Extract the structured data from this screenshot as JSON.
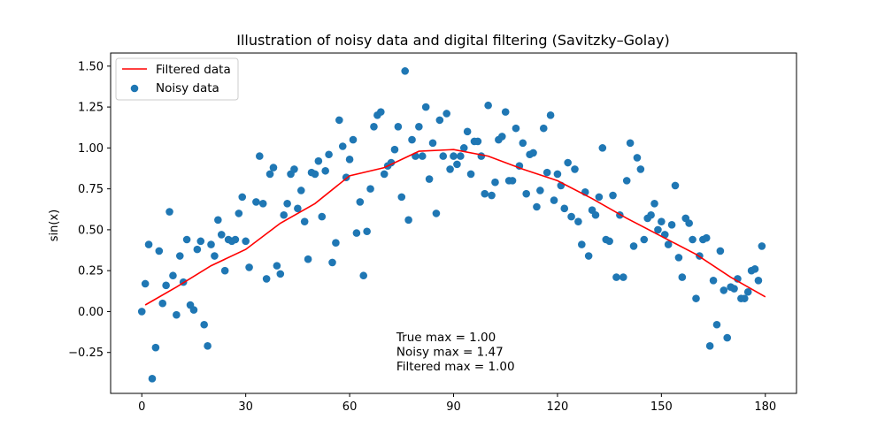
{
  "chart_data": {
    "type": "scatter",
    "title": "Illustration of noisy data and digital filtering (Savitzky–Golay)",
    "xlabel": "",
    "ylabel": "sin(x)",
    "xlim": [
      -9,
      189
    ],
    "ylim": [
      -0.5,
      1.58
    ],
    "xticks": [
      0,
      30,
      60,
      90,
      120,
      150,
      180
    ],
    "yticks": [
      -0.25,
      0.0,
      0.25,
      0.5,
      0.75,
      1.0,
      1.25,
      1.5
    ],
    "xtick_labels": [
      "0",
      "30",
      "60",
      "90",
      "120",
      "150",
      "180"
    ],
    "ytick_labels": [
      "−0.25",
      "0.00",
      "0.25",
      "0.50",
      "0.75",
      "1.00",
      "1.25",
      "1.50"
    ],
    "grid": false,
    "legend_position": "top-left",
    "annotation": [
      "True max = 1.00",
      "Noisy max = 1.47",
      "Filtered max = 1.00"
    ],
    "series": [
      {
        "name": "Filtered data",
        "kind": "line",
        "color": "#ff0000",
        "x": [
          1,
          10,
          20,
          30,
          40,
          50,
          60,
          70,
          80,
          90,
          100,
          110,
          120,
          130,
          140,
          150,
          160,
          170,
          180
        ],
        "y": [
          0.04,
          0.15,
          0.28,
          0.38,
          0.54,
          0.66,
          0.83,
          0.88,
          0.98,
          0.99,
          0.95,
          0.87,
          0.8,
          0.69,
          0.57,
          0.46,
          0.35,
          0.21,
          0.09
        ]
      },
      {
        "name": "Noisy data",
        "kind": "scatter",
        "color": "#1f77b4",
        "points": [
          [
            0,
            0.0
          ],
          [
            1,
            0.17
          ],
          [
            2,
            0.41
          ],
          [
            3,
            -0.41
          ],
          [
            4,
            -0.22
          ],
          [
            5,
            0.37
          ],
          [
            6,
            0.05
          ],
          [
            7,
            0.16
          ],
          [
            8,
            0.61
          ],
          [
            9,
            0.22
          ],
          [
            10,
            -0.02
          ],
          [
            11,
            0.34
          ],
          [
            12,
            0.18
          ],
          [
            13,
            0.44
          ],
          [
            14,
            0.04
          ],
          [
            15,
            0.01
          ],
          [
            16,
            0.38
          ],
          [
            17,
            0.43
          ],
          [
            18,
            -0.08
          ],
          [
            19,
            -0.21
          ],
          [
            20,
            0.41
          ],
          [
            21,
            0.34
          ],
          [
            22,
            0.56
          ],
          [
            23,
            0.47
          ],
          [
            24,
            0.25
          ],
          [
            25,
            0.44
          ],
          [
            26,
            0.43
          ],
          [
            27,
            0.44
          ],
          [
            28,
            0.6
          ],
          [
            29,
            0.7
          ],
          [
            30,
            0.43
          ],
          [
            31,
            0.27
          ],
          [
            33,
            0.67
          ],
          [
            34,
            0.95
          ],
          [
            35,
            0.66
          ],
          [
            36,
            0.2
          ],
          [
            37,
            0.84
          ],
          [
            38,
            0.88
          ],
          [
            39,
            0.28
          ],
          [
            40,
            0.23
          ],
          [
            41,
            0.59
          ],
          [
            42,
            0.66
          ],
          [
            43,
            0.84
          ],
          [
            44,
            0.87
          ],
          [
            45,
            0.63
          ],
          [
            46,
            0.74
          ],
          [
            47,
            0.55
          ],
          [
            48,
            0.32
          ],
          [
            49,
            0.85
          ],
          [
            50,
            0.84
          ],
          [
            51,
            0.92
          ],
          [
            52,
            0.58
          ],
          [
            53,
            0.86
          ],
          [
            54,
            0.96
          ],
          [
            55,
            0.3
          ],
          [
            56,
            0.42
          ],
          [
            57,
            1.17
          ],
          [
            58,
            1.01
          ],
          [
            59,
            0.82
          ],
          [
            60,
            0.93
          ],
          [
            61,
            1.05
          ],
          [
            62,
            0.48
          ],
          [
            63,
            0.67
          ],
          [
            64,
            0.22
          ],
          [
            65,
            0.49
          ],
          [
            66,
            0.75
          ],
          [
            67,
            1.13
          ],
          [
            68,
            1.2
          ],
          [
            69,
            1.22
          ],
          [
            70,
            0.84
          ],
          [
            71,
            0.89
          ],
          [
            72,
            0.91
          ],
          [
            73,
            0.99
          ],
          [
            74,
            1.13
          ],
          [
            75,
            0.7
          ],
          [
            76,
            1.47
          ],
          [
            77,
            0.56
          ],
          [
            78,
            1.05
          ],
          [
            79,
            0.95
          ],
          [
            80,
            1.13
          ],
          [
            81,
            0.95
          ],
          [
            82,
            1.25
          ],
          [
            83,
            0.81
          ],
          [
            84,
            1.03
          ],
          [
            85,
            0.6
          ],
          [
            86,
            1.17
          ],
          [
            87,
            0.95
          ],
          [
            88,
            1.21
          ],
          [
            89,
            0.87
          ],
          [
            90,
            0.95
          ],
          [
            91,
            0.9
          ],
          [
            92,
            0.95
          ],
          [
            93,
            1.0
          ],
          [
            94,
            1.1
          ],
          [
            95,
            0.84
          ],
          [
            96,
            1.04
          ],
          [
            97,
            1.04
          ],
          [
            98,
            0.95
          ],
          [
            99,
            0.72
          ],
          [
            100,
            1.26
          ],
          [
            101,
            0.71
          ],
          [
            102,
            0.79
          ],
          [
            103,
            1.05
          ],
          [
            104,
            1.07
          ],
          [
            105,
            1.22
          ],
          [
            106,
            0.8
          ],
          [
            107,
            0.8
          ],
          [
            108,
            1.12
          ],
          [
            109,
            0.89
          ],
          [
            110,
            1.03
          ],
          [
            111,
            0.72
          ],
          [
            112,
            0.96
          ],
          [
            113,
            0.97
          ],
          [
            114,
            0.64
          ],
          [
            115,
            0.74
          ],
          [
            116,
            1.12
          ],
          [
            117,
            0.85
          ],
          [
            118,
            1.2
          ],
          [
            119,
            0.68
          ],
          [
            120,
            0.84
          ],
          [
            121,
            0.77
          ],
          [
            122,
            0.63
          ],
          [
            123,
            0.91
          ],
          [
            124,
            0.58
          ],
          [
            125,
            0.87
          ],
          [
            126,
            0.55
          ],
          [
            127,
            0.41
          ],
          [
            128,
            0.73
          ],
          [
            129,
            0.34
          ],
          [
            130,
            0.62
          ],
          [
            131,
            0.59
          ],
          [
            132,
            0.7
          ],
          [
            133,
            1.0
          ],
          [
            134,
            0.44
          ],
          [
            135,
            0.43
          ],
          [
            136,
            0.71
          ],
          [
            137,
            0.21
          ],
          [
            138,
            0.59
          ],
          [
            139,
            0.21
          ],
          [
            140,
            0.8
          ],
          [
            141,
            1.03
          ],
          [
            142,
            0.4
          ],
          [
            143,
            0.94
          ],
          [
            144,
            0.87
          ],
          [
            145,
            0.44
          ],
          [
            146,
            0.57
          ],
          [
            147,
            0.59
          ],
          [
            148,
            0.66
          ],
          [
            149,
            0.5
          ],
          [
            150,
            0.55
          ],
          [
            151,
            0.47
          ],
          [
            152,
            0.41
          ],
          [
            153,
            0.53
          ],
          [
            154,
            0.77
          ],
          [
            155,
            0.33
          ],
          [
            156,
            0.21
          ],
          [
            157,
            0.57
          ],
          [
            158,
            0.54
          ],
          [
            159,
            0.44
          ],
          [
            160,
            0.08
          ],
          [
            161,
            0.34
          ],
          [
            162,
            0.44
          ],
          [
            163,
            0.45
          ],
          [
            164,
            -0.21
          ],
          [
            165,
            0.19
          ],
          [
            166,
            -0.08
          ],
          [
            167,
            0.37
          ],
          [
            168,
            0.13
          ],
          [
            169,
            -0.16
          ],
          [
            170,
            0.15
          ],
          [
            171,
            0.14
          ],
          [
            172,
            0.2
          ],
          [
            173,
            0.08
          ],
          [
            174,
            0.08
          ],
          [
            175,
            0.12
          ],
          [
            176,
            0.25
          ],
          [
            177,
            0.26
          ],
          [
            178,
            0.19
          ],
          [
            179,
            0.4
          ]
        ]
      }
    ]
  }
}
